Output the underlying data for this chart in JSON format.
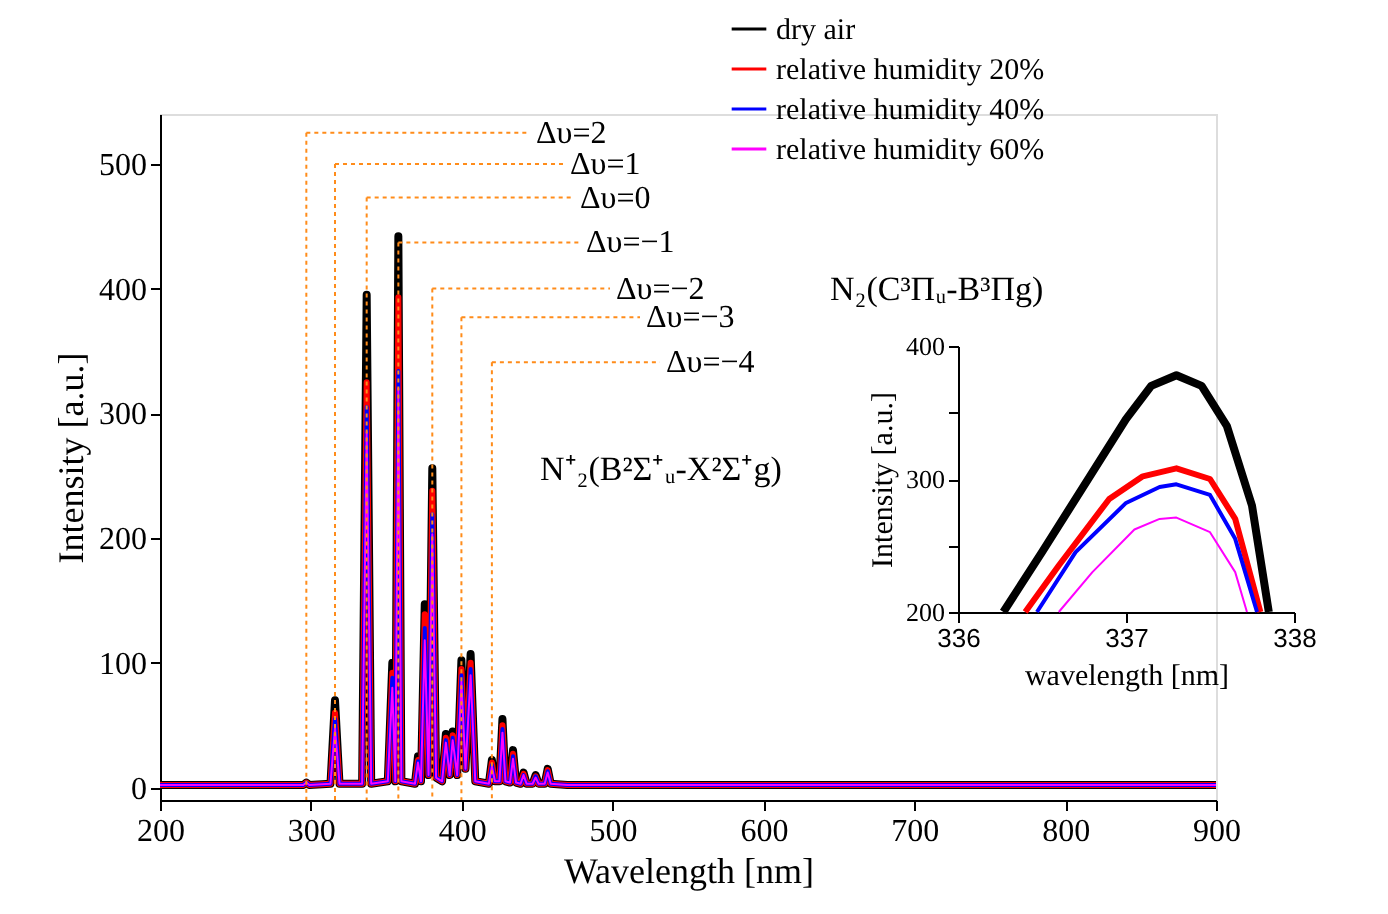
{
  "chart_data": [
    {
      "type": "line",
      "xlabel": "Wavelength [nm]",
      "ylabel": "Intensity [a.u.]",
      "xlim": [
        200,
        900
      ],
      "xticks": [
        200,
        300,
        400,
        500,
        600,
        700,
        800,
        900
      ],
      "ylim": [
        -10,
        540
      ],
      "yticks": [
        0,
        100,
        200,
        300,
        400,
        500
      ],
      "legend": "top right",
      "x": [
        200,
        290,
        295,
        297,
        299,
        313,
        316,
        319,
        334,
        337,
        340,
        351,
        354,
        356,
        358,
        360,
        369,
        371,
        373,
        375.5,
        378,
        380.5,
        383,
        387,
        389.5,
        392,
        394,
        397,
        399.8,
        402.5,
        405.9,
        409,
        418,
        420,
        422,
        425,
        427,
        429,
        432,
        434,
        436,
        439,
        441,
        443,
        447,
        449,
        451,
        455,
        457,
        459,
        470,
        500,
        600,
        700,
        800,
        900
      ],
      "series": [
        {
          "name": "dry air",
          "color": "#000000",
          "values": [
            2,
            2,
            2,
            4,
            2,
            3,
            70,
            3,
            3,
            395,
            3,
            5,
            100,
            5,
            442,
            5,
            3,
            25,
            5,
            147,
            10,
            256,
            8,
            5,
            43,
            10,
            45,
            10,
            102,
            15,
            107,
            5,
            3,
            22,
            5,
            5,
            55,
            5,
            4,
            30,
            4,
            3,
            12,
            3,
            3,
            10,
            3,
            3,
            15,
            3,
            2,
            2,
            2,
            2,
            2,
            2
          ]
        },
        {
          "name": "relative humidity 20%",
          "color": "#ff0000",
          "values": [
            2,
            2,
            2,
            4,
            2,
            3,
            60,
            3,
            3,
            325,
            3,
            5,
            92,
            5,
            393,
            5,
            3,
            22,
            5,
            139,
            10,
            238,
            8,
            5,
            40,
            10,
            42,
            10,
            95,
            15,
            100,
            5,
            3,
            20,
            5,
            5,
            50,
            5,
            4,
            27,
            4,
            3,
            11,
            3,
            3,
            9,
            3,
            3,
            14,
            3,
            2,
            2,
            2,
            2,
            2,
            2
          ]
        },
        {
          "name": "relative humidity 40%",
          "color": "#0000ff",
          "values": [
            2,
            2,
            2,
            4,
            2,
            3,
            55,
            3,
            3,
            305,
            3,
            5,
            88,
            5,
            334,
            5,
            3,
            21,
            5,
            128,
            10,
            219,
            8,
            5,
            38,
            10,
            40,
            10,
            90,
            15,
            95,
            5,
            3,
            18,
            5,
            5,
            47,
            5,
            4,
            25,
            4,
            3,
            10,
            3,
            3,
            9,
            3,
            3,
            13,
            3,
            2,
            2,
            2,
            2,
            2,
            2
          ]
        },
        {
          "name": "relative humidity 60%",
          "color": "#ff00ff",
          "values": [
            2,
            2,
            2,
            4,
            2,
            3,
            48,
            3,
            3,
            285,
            3,
            5,
            80,
            5,
            320,
            5,
            3,
            20,
            5,
            118,
            10,
            203,
            8,
            5,
            36,
            10,
            38,
            10,
            85,
            15,
            90,
            5,
            3,
            17,
            5,
            5,
            44,
            5,
            4,
            23,
            4,
            3,
            10,
            3,
            3,
            8,
            3,
            3,
            12,
            3,
            2,
            2,
            2,
            2,
            2,
            2
          ]
        }
      ],
      "ref_lines": [
        {
          "axis": "x",
          "value": 297,
          "color": "#ff8c1a",
          "line_style": "dotted"
        },
        {
          "axis": "x",
          "value": 316,
          "color": "#ff8c1a",
          "line_style": "dotted"
        },
        {
          "axis": "x",
          "value": 337,
          "color": "#ff8c1a",
          "line_style": "dotted"
        },
        {
          "axis": "x",
          "value": 358,
          "color": "#ff8c1a",
          "line_style": "dotted"
        },
        {
          "axis": "x",
          "value": 380.5,
          "color": "#ff8c1a",
          "line_style": "dotted"
        },
        {
          "axis": "x",
          "value": 399.8,
          "color": "#ff8c1a",
          "line_style": "dotted"
        },
        {
          "axis": "x",
          "value": 420,
          "color": "#ff8c1a",
          "line_style": "dotted"
        }
      ],
      "annotations": [
        {
          "text": "Δυ=2",
          "x": 297,
          "y": 525
        },
        {
          "text": "Δυ=1",
          "x": 316,
          "y": 500
        },
        {
          "text": "Δυ=0",
          "x": 337,
          "y": 473
        },
        {
          "text": "Δυ=−1",
          "x": 358,
          "y": 437
        },
        {
          "text": "Δυ=−2",
          "x": 380.5,
          "y": 400
        },
        {
          "text": "Δυ=−3",
          "x": 399.8,
          "y": 377
        },
        {
          "text": "Δυ=−4",
          "x": 420,
          "y": 341
        },
        "N₂(C³Πᵤ-B³Πg)",
        "N⁺₂(B²Σ⁺ᵤ-X²Σ⁺g)"
      ]
    },
    {
      "type": "line",
      "xlabel": "wavelength [nm]",
      "ylabel": "Intensity [a.u.]",
      "xlim": [
        336,
        338
      ],
      "xticks": [
        336,
        337,
        338
      ],
      "ylim": [
        200,
        400
      ],
      "yticks": [
        200,
        {
          "value": 250,
          "label": null
        },
        300,
        {
          "value": 350,
          "label": null
        },
        400
      ],
      "series": [
        {
          "color": "#000000",
          "x": [
            336.27,
            336.5,
            336.8,
            337.0,
            337.15,
            337.3,
            337.45,
            337.6,
            337.75,
            337.85
          ],
          "values": [
            200,
            245,
            305,
            345,
            370,
            378,
            370,
            340,
            280,
            200
          ]
        },
        {
          "color": "#ff0000",
          "x": [
            336.4,
            336.6,
            336.9,
            337.1,
            337.3,
            337.5,
            337.65,
            337.8
          ],
          "values": [
            200,
            235,
            285,
            302,
            308,
            300,
            270,
            200
          ]
        },
        {
          "color": "#0000ff",
          "x": [
            336.47,
            336.7,
            337.0,
            337.2,
            337.3,
            337.5,
            337.65,
            337.78
          ],
          "values": [
            200,
            245,
            282,
            294,
            296,
            288,
            255,
            200
          ]
        },
        {
          "color": "#ff00ff",
          "x": [
            336.6,
            336.8,
            337.05,
            337.2,
            337.3,
            337.5,
            337.65,
            337.72
          ],
          "values": [
            200,
            230,
            262,
            270,
            271,
            260,
            230,
            200
          ]
        }
      ]
    }
  ]
}
